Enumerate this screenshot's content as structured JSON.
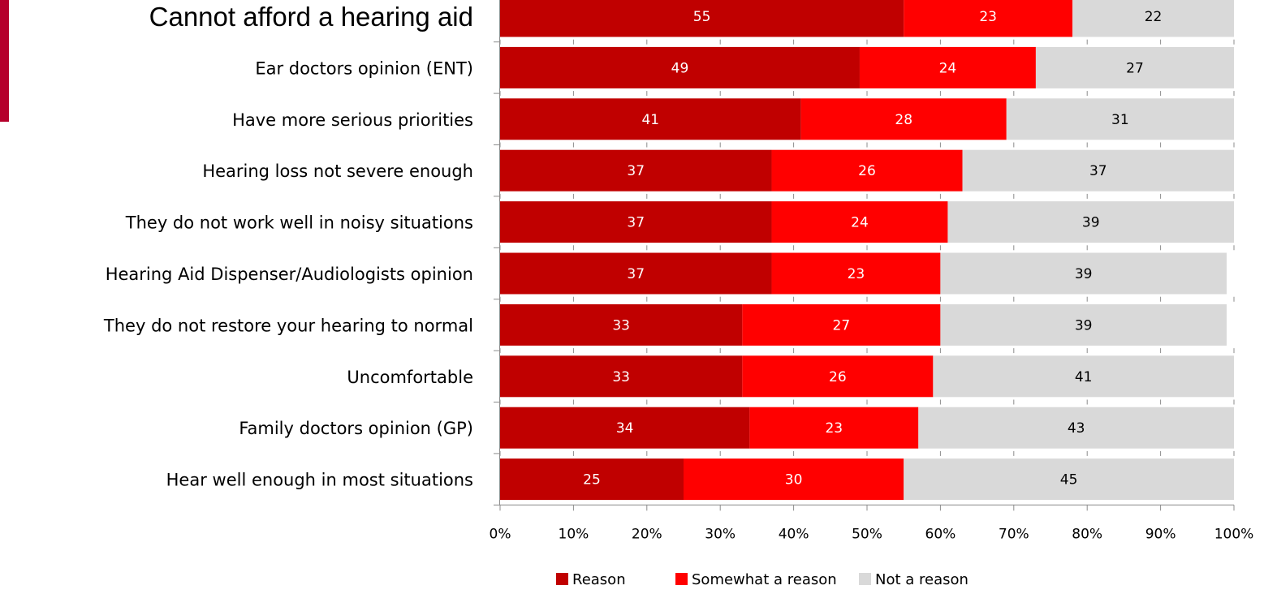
{
  "chart_data": {
    "type": "bar",
    "orientation": "horizontal",
    "stacked": true,
    "categories": [
      "Cannot afford a hearing aid",
      "Ear doctors opinion (ENT)",
      "Have more serious priorities",
      "Hearing loss not severe enough",
      "They do not work well in noisy situations",
      "Hearing Aid Dispenser/Audiologists opinion",
      "They do not restore your hearing to normal",
      "Uncomfortable",
      "Family doctors opinion (GP)",
      "Hear well enough in most situations"
    ],
    "series": [
      {
        "name": "Reason",
        "color": "#c00000",
        "label_color": "#ffffff",
        "values": [
          55,
          49,
          41,
          37,
          37,
          37,
          33,
          33,
          34,
          25
        ]
      },
      {
        "name": "Somewhat a reason",
        "color": "#ff0000",
        "label_color": "#ffffff",
        "values": [
          23,
          24,
          28,
          26,
          24,
          23,
          27,
          26,
          23,
          30
        ]
      },
      {
        "name": "Not a reason",
        "color": "#d9d9d9",
        "label_color": "#000000",
        "values": [
          22,
          27,
          31,
          37,
          39,
          39,
          39,
          41,
          43,
          45
        ]
      }
    ],
    "xlim": [
      0,
      100
    ],
    "x_ticks": [
      "0%",
      "10%",
      "20%",
      "30%",
      "40%",
      "50%",
      "60%",
      "70%",
      "80%",
      "90%",
      "100%"
    ],
    "grid": false,
    "legend_position": "bottom",
    "title": "",
    "xlabel": "",
    "ylabel": ""
  },
  "accent_color": "#b5002b"
}
